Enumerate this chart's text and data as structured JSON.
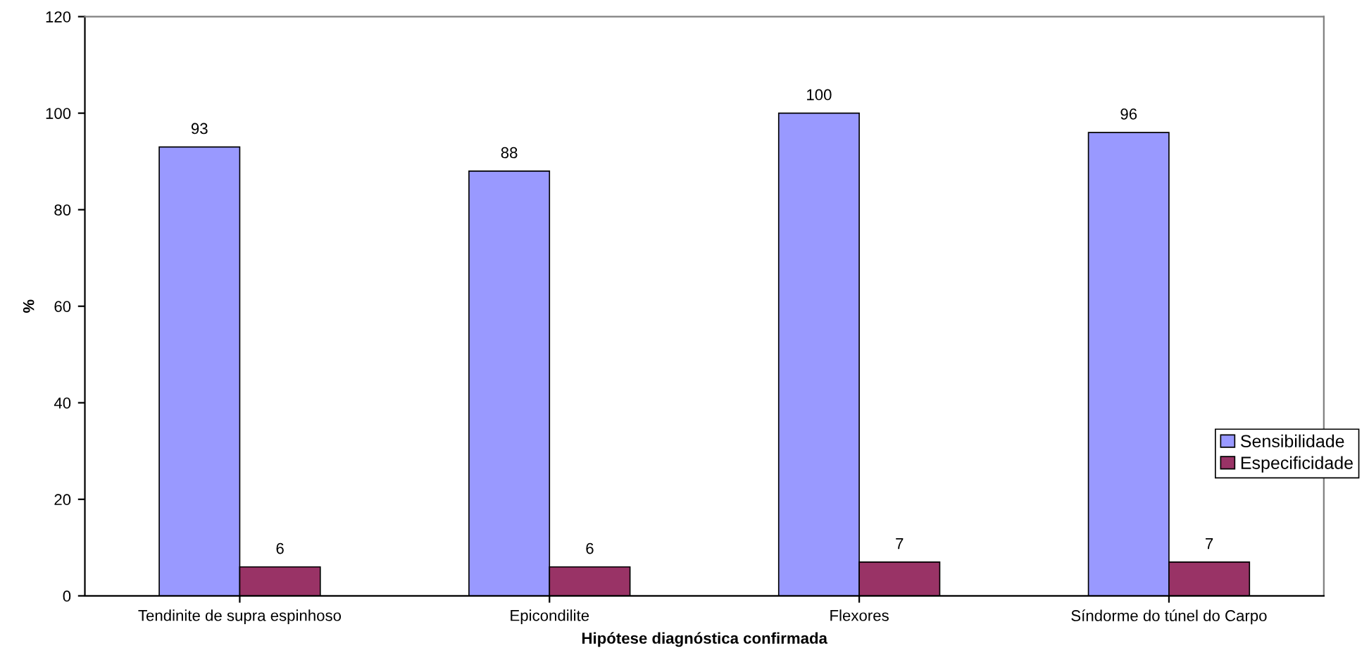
{
  "chart_data": {
    "type": "bar",
    "xlabel": "Hipótese diagnóstica confirmada",
    "ylabel": "%",
    "categories": [
      "Tendinite de supra espinhoso",
      "Epicondilite",
      "Flexores",
      "Síndorme do túnel do Carpo"
    ],
    "series": [
      {
        "name": "Sensibilidade",
        "color": "#9999ff",
        "values": [
          93,
          88,
          100,
          96
        ]
      },
      {
        "name": "Especificidade",
        "color": "#993366",
        "values": [
          6,
          6,
          7,
          7
        ]
      }
    ],
    "ylim": [
      0,
      120
    ],
    "yticks": [
      0,
      20,
      40,
      60,
      80,
      100,
      120
    ],
    "grid": false,
    "legend": "right",
    "data_labels": true
  }
}
